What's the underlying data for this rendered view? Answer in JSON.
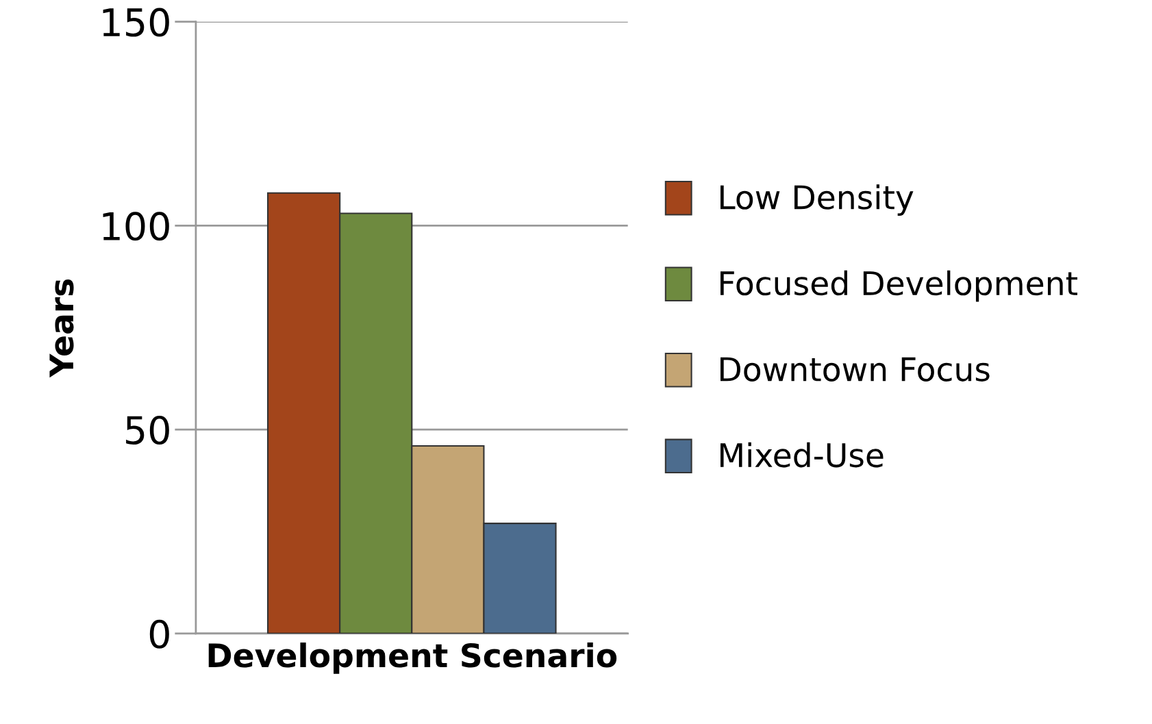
{
  "chart_data": {
    "type": "bar",
    "xlabel": "Development Scenario",
    "ylabel": "Years",
    "categories": [
      null
    ],
    "series": [
      {
        "name": "Low Density",
        "color": "#a3451b",
        "values": [
          108
        ]
      },
      {
        "name": "Focused Development",
        "color": "#6e8a3f",
        "values": [
          103
        ]
      },
      {
        "name": "Downtown Focus",
        "color": "#c4a574",
        "values": [
          46
        ]
      },
      {
        "name": "Mixed-Use",
        "color": "#4c6c8e",
        "values": [
          27
        ]
      }
    ],
    "ylim": [
      0,
      150
    ],
    "yticks": [
      0,
      50,
      100,
      150
    ],
    "grid": "y",
    "legend": "right"
  }
}
